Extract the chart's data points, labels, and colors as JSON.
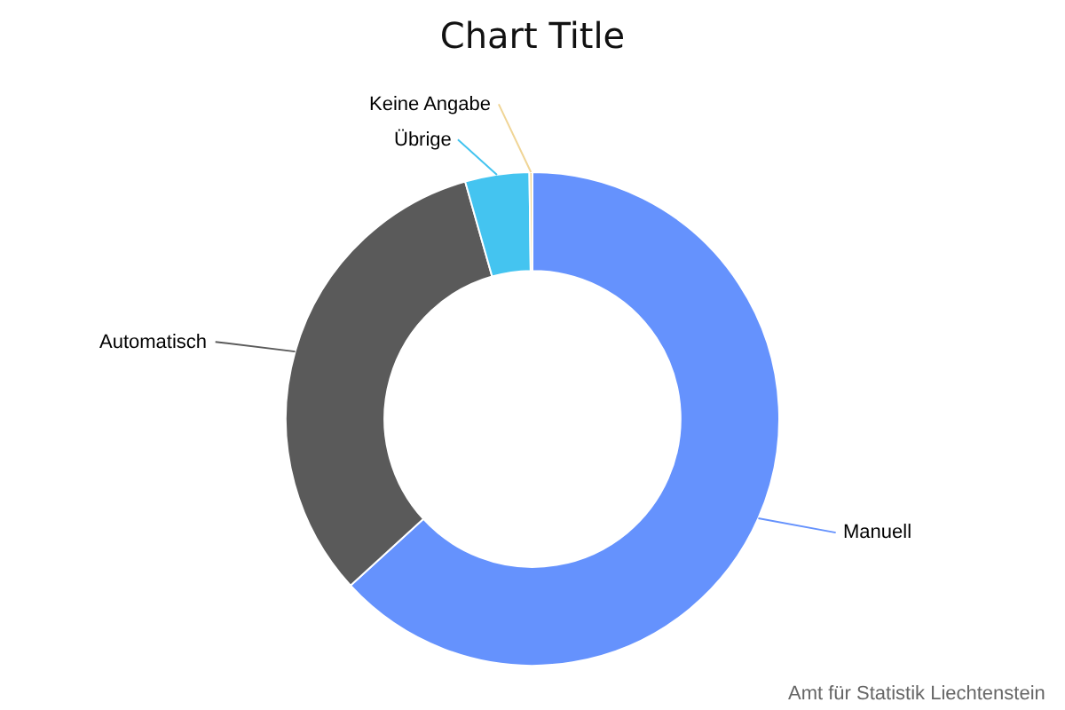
{
  "chart_data": {
    "type": "donut",
    "title": "Chart Title",
    "categories": [
      "Manuell",
      "Automatisch",
      "Übrige",
      "Keine Angabe"
    ],
    "values": [
      63.2,
      32.4,
      4.2,
      0.2
    ],
    "colors": [
      "#6592fd",
      "#5a5a5a",
      "#44c4f0",
      "#f0d596"
    ],
    "annotations": [
      "Amt für Statistik Liechtenstein"
    ]
  }
}
